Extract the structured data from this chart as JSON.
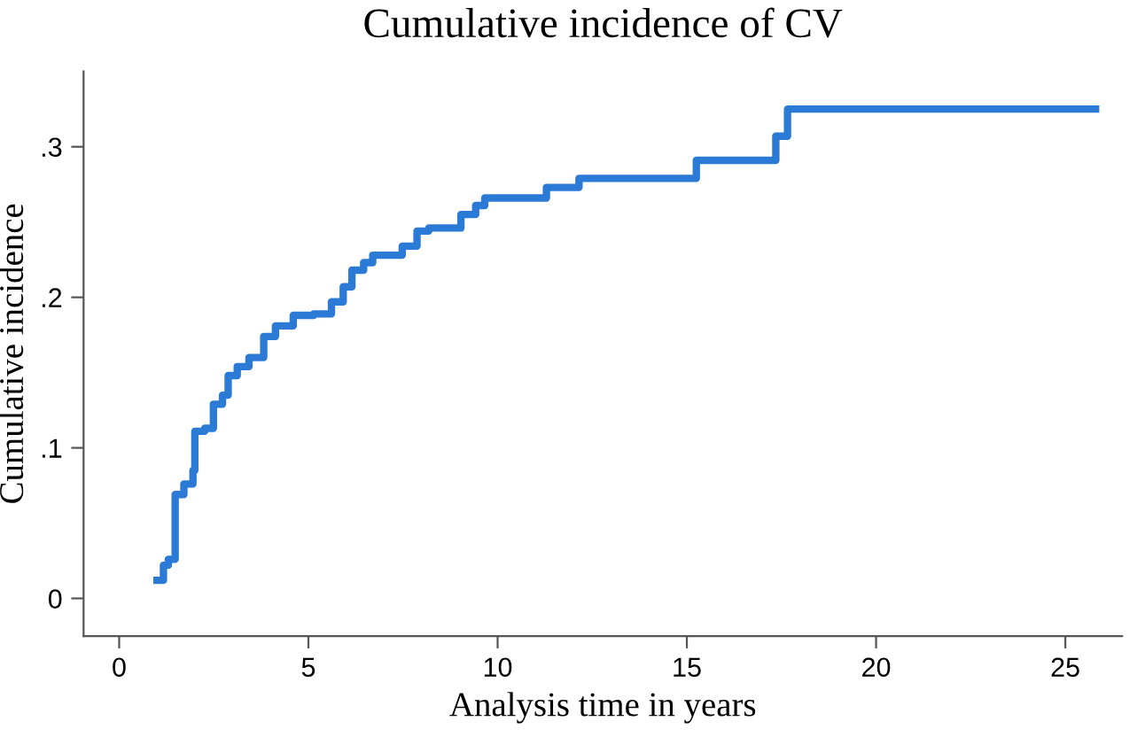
{
  "chart_data": {
    "type": "step",
    "title": "Cumulative incidence of CV",
    "xlabel": "Analysis time in years",
    "ylabel": "Cumulative incidence",
    "series": [
      {
        "color": "#2b7bd6",
        "x": [
          1.0,
          1.17,
          1.3,
          1.48,
          1.71,
          1.95,
          2.0,
          2.26,
          2.49,
          2.73,
          2.88,
          3.12,
          3.43,
          3.82,
          4.13,
          4.6,
          5.14,
          5.61,
          5.92,
          6.15,
          6.46,
          6.7,
          7.48,
          7.87,
          8.18,
          9.03,
          9.42,
          9.66,
          11.29,
          12.15,
          15.25,
          17.35,
          17.66,
          25.8
        ],
        "values": [
          0.012,
          0.022,
          0.026,
          0.069,
          0.076,
          0.085,
          0.111,
          0.113,
          0.129,
          0.135,
          0.148,
          0.154,
          0.16,
          0.174,
          0.181,
          0.188,
          0.189,
          0.197,
          0.207,
          0.218,
          0.223,
          0.228,
          0.234,
          0.244,
          0.246,
          0.255,
          0.261,
          0.266,
          0.273,
          0.279,
          0.291,
          0.307,
          0.325,
          0.325
        ]
      }
    ],
    "xlim": [
      -0.94,
      26.5
    ],
    "xticks": [
      0,
      5,
      10,
      15,
      20,
      25
    ],
    "ylim": [
      -0.025,
      0.35
    ],
    "yticks": [
      0,
      {
        "value": 0.1,
        "label": ".1"
      },
      {
        "value": 0.2,
        "label": ".2"
      },
      {
        "value": 0.3,
        "label": ".3"
      }
    ],
    "grid": false,
    "legend": false,
    "line_style": "solid",
    "marker": "none"
  }
}
